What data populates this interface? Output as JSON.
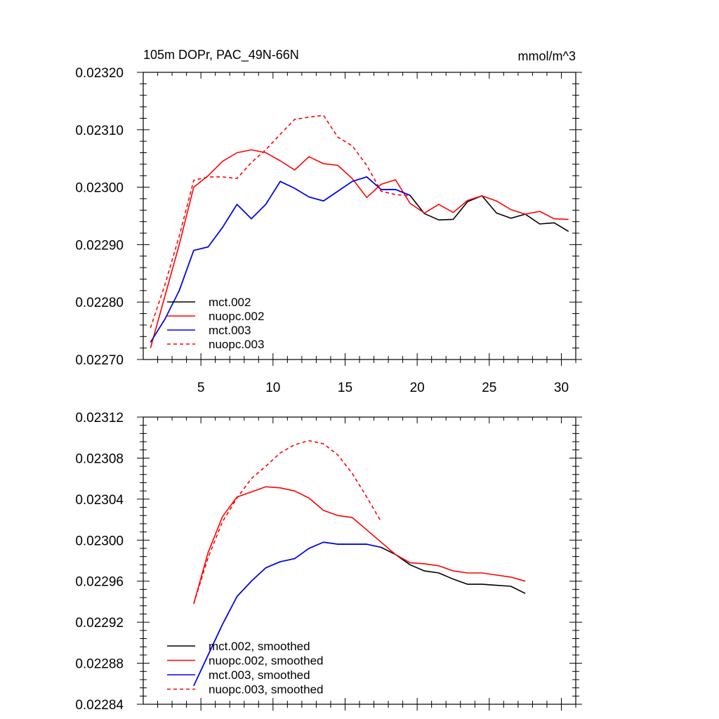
{
  "chart_data": [
    {
      "type": "line",
      "title": "105m DOPr, PAC_49N-66N",
      "units": "mmol/m^3",
      "xlim": [
        1,
        31
      ],
      "ylim": [
        0.0227,
        0.0232
      ],
      "xticks": [
        5,
        10,
        15,
        20,
        25,
        30
      ],
      "xtick_labels": [
        "5",
        "10",
        "15",
        "20",
        "25",
        "30"
      ],
      "yticks": [
        0.0227,
        0.0228,
        0.0229,
        0.023,
        0.0231,
        0.0232
      ],
      "ytick_labels": [
        "0.02270",
        "0.02280",
        "0.02290",
        "0.02300",
        "0.02310",
        "0.02320"
      ],
      "legend_position": "bottom-left",
      "series": [
        {
          "name": "mct.002",
          "color": "#000000",
          "dash": "solid",
          "x": [
            1.5,
            2.5,
            3.5,
            4.5,
            5.5,
            6.5,
            7.5,
            8.5,
            9.5,
            10.5,
            11.5,
            12.5,
            13.5,
            14.5,
            15.5,
            16.5,
            17.5,
            18.5,
            19.5,
            20.5,
            21.5,
            22.5,
            23.5,
            24.5,
            25.5,
            26.5,
            27.5,
            28.5,
            29.5,
            30.5
          ],
          "y": [
            0.02273,
            0.02277,
            0.02282,
            0.02289,
            0.022896,
            0.02293,
            0.02297,
            0.022945,
            0.02297,
            0.02301,
            0.022998,
            0.022983,
            0.022976,
            0.022993,
            0.02301,
            0.023018,
            0.022996,
            0.022996,
            0.022986,
            0.022954,
            0.022943,
            0.022944,
            0.022975,
            0.022985,
            0.022955,
            0.022946,
            0.022953,
            0.022936,
            0.022938,
            0.022923
          ]
        },
        {
          "name": "nuopc.002",
          "color": "#ff0000",
          "dash": "solid",
          "x": [
            1.5,
            2.5,
            3.5,
            4.5,
            5.5,
            6.5,
            7.5,
            8.5,
            9.5,
            10.5,
            11.5,
            12.5,
            13.5,
            14.5,
            15.5,
            16.5,
            17.5,
            18.5,
            19.5,
            20.5,
            21.5,
            22.5,
            23.5,
            24.5,
            25.5,
            26.5,
            27.5,
            28.5,
            29.5,
            30.5
          ],
          "y": [
            0.02272,
            0.02281,
            0.0229,
            0.023,
            0.02302,
            0.023045,
            0.02306,
            0.023065,
            0.02306,
            0.023046,
            0.02303,
            0.023053,
            0.023041,
            0.023038,
            0.023015,
            0.022982,
            0.023005,
            0.023013,
            0.022972,
            0.022955,
            0.02297,
            0.022956,
            0.022977,
            0.022985,
            0.022976,
            0.022961,
            0.022953,
            0.022958,
            0.022945,
            0.022944
          ]
        },
        {
          "name": "mct.003",
          "color": "#0000ff",
          "dash": "solid",
          "x": [
            1.5,
            2.5,
            3.5,
            4.5,
            5.5,
            6.5,
            7.5,
            8.5,
            9.5,
            10.5,
            11.5,
            12.5,
            13.5,
            14.5,
            15.5,
            16.5,
            17.5,
            18.5,
            19.5
          ],
          "y": [
            0.02273,
            0.02277,
            0.02282,
            0.02289,
            0.022896,
            0.02293,
            0.02297,
            0.022945,
            0.02297,
            0.02301,
            0.022998,
            0.022983,
            0.022976,
            0.022993,
            0.02301,
            0.023018,
            0.022996,
            0.022996,
            0.022986
          ]
        },
        {
          "name": "nuopc.003",
          "color": "#ff0000",
          "dash": "dashed",
          "x": [
            1.5,
            2.5,
            3.5,
            4.5,
            5.5,
            6.5,
            7.5,
            8.5,
            9.5,
            10.5,
            11.5,
            12.5,
            13.5,
            14.5,
            15.5,
            16.5,
            17.5,
            18.5,
            19.5
          ],
          "y": [
            0.022755,
            0.02283,
            0.022915,
            0.023012,
            0.023018,
            0.023018,
            0.023015,
            0.023043,
            0.023065,
            0.023092,
            0.023118,
            0.023122,
            0.023125,
            0.023087,
            0.023072,
            0.023038,
            0.022993,
            0.022987,
            0.022985
          ]
        }
      ]
    },
    {
      "type": "line",
      "xlim": [
        1,
        31
      ],
      "ylim": [
        0.02284,
        0.02312
      ],
      "xticks": [
        5,
        10,
        15,
        20,
        25,
        30
      ],
      "yticks": [
        0.02284,
        0.02288,
        0.02292,
        0.02296,
        0.023,
        0.02304,
        0.02308,
        0.02312
      ],
      "ytick_labels": [
        "0.02284",
        "0.02288",
        "0.02292",
        "0.02296",
        "0.02300",
        "0.02304",
        "0.02308",
        "0.02312"
      ],
      "legend_position": "bottom-left",
      "series": [
        {
          "name": "mct.002, smoothed",
          "color": "#000000",
          "dash": "solid",
          "x": [
            4.5,
            5.5,
            6.5,
            7.5,
            8.5,
            9.5,
            10.5,
            11.5,
            12.5,
            13.5,
            14.5,
            15.5,
            16.5,
            17.5,
            18.5,
            19.5,
            20.5,
            21.5,
            22.5,
            23.5,
            24.5,
            25.5,
            26.5,
            27.5
          ],
          "y": [
            0.022858,
            0.022888,
            0.022918,
            0.022945,
            0.02296,
            0.022973,
            0.022979,
            0.022982,
            0.022992,
            0.022998,
            0.022996,
            0.022996,
            0.022996,
            0.022993,
            0.022986,
            0.022976,
            0.02297,
            0.022968,
            0.022962,
            0.022957,
            0.022957,
            0.022956,
            0.022955,
            0.022948
          ]
        },
        {
          "name": "nuopc.002, smoothed",
          "color": "#ff0000",
          "dash": "solid",
          "x": [
            4.5,
            5.5,
            6.5,
            7.5,
            8.5,
            9.5,
            10.5,
            11.5,
            12.5,
            13.5,
            14.5,
            15.5,
            16.5,
            17.5,
            18.5,
            19.5,
            20.5,
            21.5,
            22.5,
            23.5,
            24.5,
            25.5,
            26.5,
            27.5
          ],
          "y": [
            0.022938,
            0.022988,
            0.023023,
            0.023042,
            0.023047,
            0.023052,
            0.023051,
            0.023048,
            0.023041,
            0.023029,
            0.023024,
            0.023022,
            0.02301,
            0.022998,
            0.022986,
            0.022978,
            0.022977,
            0.022975,
            0.02297,
            0.022968,
            0.022968,
            0.022966,
            0.022964,
            0.02296
          ]
        },
        {
          "name": "mct.003, smoothed",
          "color": "#0000ff",
          "dash": "solid",
          "x": [
            4.5,
            5.5,
            6.5,
            7.5,
            8.5,
            9.5,
            10.5,
            11.5,
            12.5,
            13.5,
            14.5,
            15.5,
            16.5,
            17.5
          ],
          "y": [
            0.022858,
            0.022888,
            0.022918,
            0.022945,
            0.02296,
            0.022973,
            0.022979,
            0.022982,
            0.022992,
            0.022998,
            0.022996,
            0.022996,
            0.022996,
            0.022993
          ]
        },
        {
          "name": "nuopc.003, smoothed",
          "color": "#ff0000",
          "dash": "dashed",
          "x": [
            4.5,
            5.5,
            6.5,
            7.5,
            8.5,
            9.5,
            10.5,
            11.5,
            12.5,
            13.5,
            14.5,
            15.5,
            16.5,
            17.5
          ],
          "y": [
            0.022938,
            0.022983,
            0.023018,
            0.023041,
            0.02306,
            0.023072,
            0.023085,
            0.023093,
            0.023097,
            0.023094,
            0.023083,
            0.023065,
            0.023042,
            0.023018
          ]
        }
      ]
    }
  ]
}
